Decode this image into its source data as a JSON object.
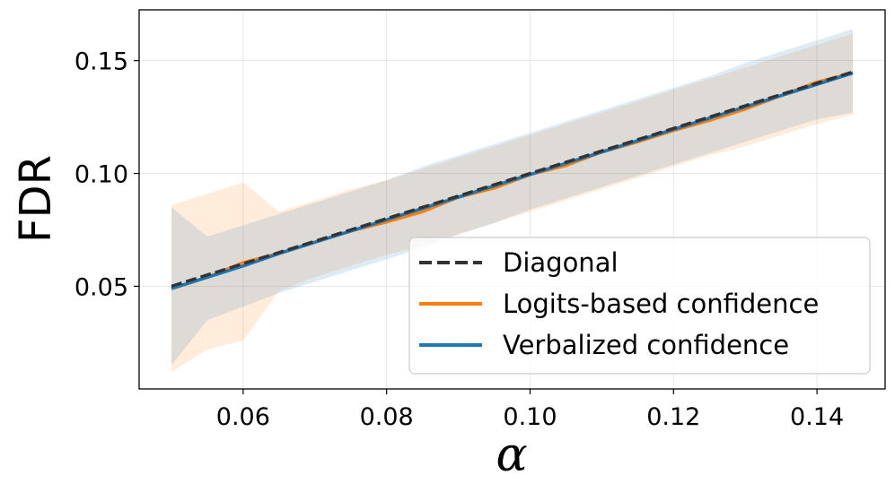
{
  "chart_data": {
    "type": "line",
    "title": "",
    "xlabel": "α",
    "ylabel": "FDR",
    "xlim": [
      0.0455,
      0.1495
    ],
    "ylim": [
      0.0045,
      0.1725
    ],
    "grid": true,
    "legend_position": "bottom-right",
    "xticks": [
      0.06,
      0.08,
      0.1,
      0.12,
      0.14
    ],
    "xtick_labels": [
      "0.06",
      "0.08",
      "0.10",
      "0.12",
      "0.14"
    ],
    "yticks": [
      0.05,
      0.1,
      0.15
    ],
    "ytick_labels": [
      "0.05",
      "0.10",
      "0.15"
    ],
    "x": [
      0.05,
      0.055,
      0.06,
      0.065,
      0.07,
      0.075,
      0.08,
      0.085,
      0.09,
      0.095,
      0.1,
      0.105,
      0.11,
      0.115,
      0.12,
      0.125,
      0.13,
      0.135,
      0.14,
      0.145
    ],
    "series": [
      {
        "name": "Diagonal",
        "color": "#333333",
        "style": "dashed",
        "values": [
          0.05,
          0.055,
          0.06,
          0.065,
          0.07,
          0.075,
          0.08,
          0.085,
          0.09,
          0.095,
          0.1,
          0.105,
          0.11,
          0.115,
          0.12,
          0.125,
          0.13,
          0.135,
          0.14,
          0.145
        ]
      },
      {
        "name": "Logits-based confidence",
        "color": "#ff7f0e",
        "style": "solid",
        "values": [
          0.049,
          0.054,
          0.0605,
          0.0645,
          0.0695,
          0.0745,
          0.0785,
          0.083,
          0.0895,
          0.0935,
          0.0995,
          0.1035,
          0.1095,
          0.114,
          0.119,
          0.1235,
          0.1285,
          0.1345,
          0.1405,
          0.1445
        ],
        "band_lower": [
          0.012,
          0.022,
          0.026,
          0.048,
          0.054,
          0.059,
          0.064,
          0.068,
          0.073,
          0.078,
          0.083,
          0.088,
          0.093,
          0.098,
          0.103,
          0.108,
          0.112,
          0.117,
          0.122,
          0.126
        ],
        "band_upper": [
          0.086,
          0.091,
          0.096,
          0.083,
          0.088,
          0.093,
          0.097,
          0.102,
          0.107,
          0.112,
          0.117,
          0.122,
          0.127,
          0.132,
          0.137,
          0.142,
          0.147,
          0.152,
          0.157,
          0.162
        ]
      },
      {
        "name": "Verbalized confidence",
        "color": "#1f77b4",
        "style": "solid",
        "values": [
          0.049,
          0.054,
          0.059,
          0.0645,
          0.0695,
          0.0745,
          0.0795,
          0.0845,
          0.0895,
          0.0945,
          0.0995,
          0.1045,
          0.1095,
          0.1145,
          0.1195,
          0.1245,
          0.1295,
          0.1345,
          0.1395,
          0.1445
        ],
        "band_lower": [
          0.015,
          0.035,
          0.041,
          0.047,
          0.052,
          0.057,
          0.062,
          0.067,
          0.073,
          0.078,
          0.084,
          0.089,
          0.094,
          0.099,
          0.104,
          0.109,
          0.114,
          0.119,
          0.124,
          0.127
        ],
        "band_upper": [
          0.085,
          0.072,
          0.077,
          0.082,
          0.087,
          0.092,
          0.097,
          0.103,
          0.108,
          0.113,
          0.118,
          0.123,
          0.128,
          0.133,
          0.138,
          0.143,
          0.149,
          0.154,
          0.159,
          0.164
        ]
      }
    ]
  }
}
